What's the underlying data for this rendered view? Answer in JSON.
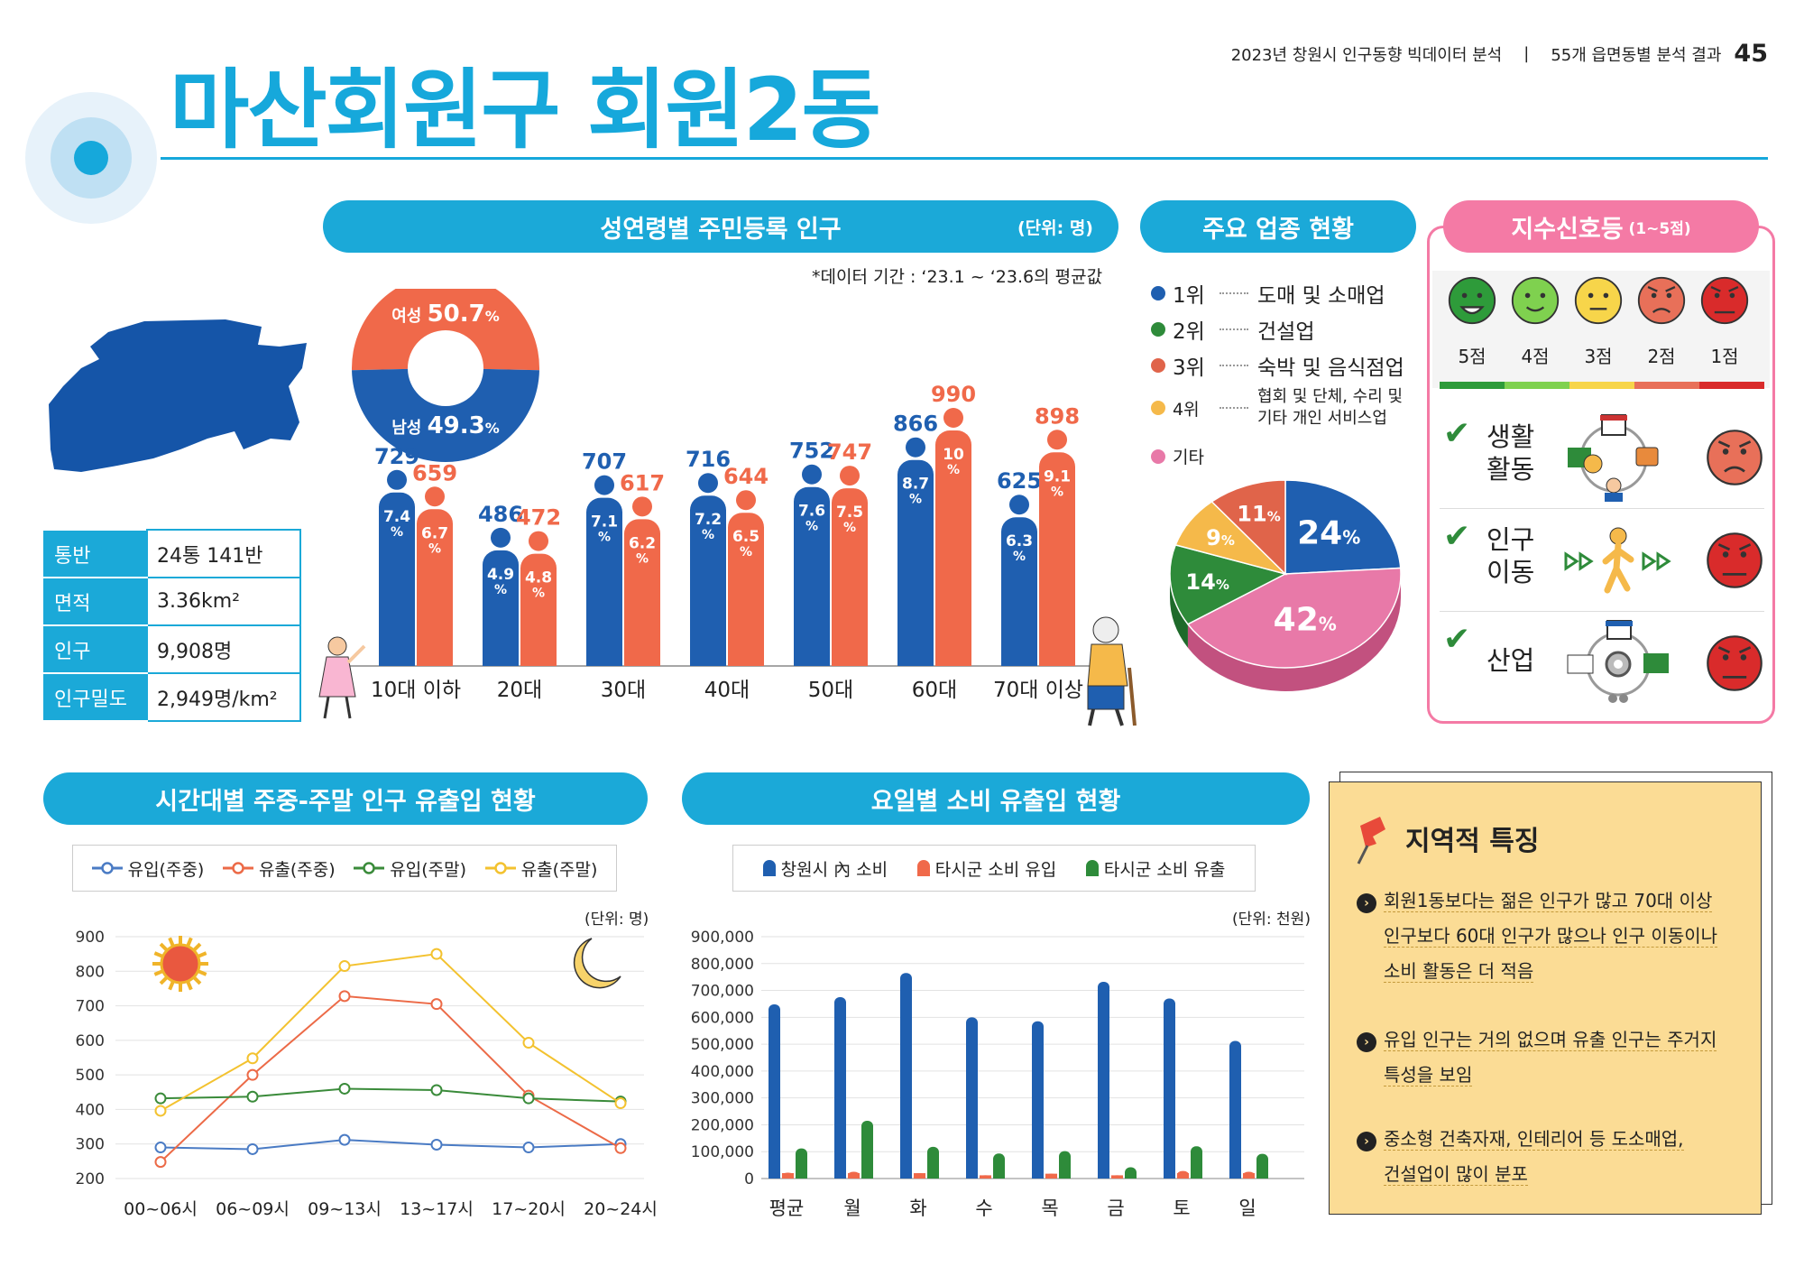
{
  "header": {
    "title": "마산회원구 회원2동",
    "report": "2023년 창원시 인구동향 빅데이터 분석",
    "separator": "|",
    "section": "55개 읍면동별 분석 결과",
    "page": "45"
  },
  "info": [
    {
      "key": "통반",
      "value": "24통 141반"
    },
    {
      "key": "면적",
      "value": "3.36km²"
    },
    {
      "key": "인구",
      "value": "9,908명"
    },
    {
      "key": "인구밀도",
      "value": "2,949명/km²"
    }
  ],
  "sections": {
    "age": {
      "title": "성연령별 주민등록 인구",
      "unit": "(단위: 명)",
      "period": "*데이터 기간 : ‘23.1 ~ ‘23.6의 평균값"
    },
    "industry": {
      "title": "주요 업종 현황"
    },
    "signal": {
      "title": "지수신호등",
      "range": "(1~5점)"
    },
    "time": {
      "title": "시간대별 주중-주말 인구 유출입 현황",
      "unit": "(단위: 명)"
    },
    "week": {
      "title": "요일별 소비 유출입 현황",
      "unit": "(단위: 천원)"
    },
    "note": {
      "title": "지역적 특징"
    }
  },
  "gender": {
    "female_label": "여성",
    "female_value": "50.7",
    "female_pct": 50.7,
    "male_label": "남성",
    "male_value": "49.3",
    "male_pct": 49.3,
    "unit": "%"
  },
  "industry_legend": [
    {
      "rank": "1위",
      "name": "도매 및 소매업",
      "color": "#1f5fb0"
    },
    {
      "rank": "2위",
      "name": "건설업",
      "color": "#2e8b3a"
    },
    {
      "rank": "3위",
      "name": "숙박 및 음식점업",
      "color": "#e0644a"
    },
    {
      "rank": "4위",
      "name": "협회 및 단체, 수리 및 기타 개인 서비스업",
      "color": "#f5b94a"
    },
    {
      "rank": "기타",
      "name": "",
      "color": "#e879a8"
    }
  ],
  "signal": {
    "scores": [
      "5점",
      "4점",
      "3점",
      "2점",
      "1점"
    ],
    "colors": [
      "#2e9b3a",
      "#7fd14f",
      "#f7d54a",
      "#e87059",
      "#d92b2b"
    ],
    "items": [
      {
        "label1": "생활",
        "label2": "활동",
        "score": 2
      },
      {
        "label1": "인구",
        "label2": "이동",
        "score": 1
      },
      {
        "label1": "산업",
        "label2": "",
        "score": 1
      }
    ]
  },
  "notes": [
    {
      "lines": [
        "회원1동보다는 젊은 인구가 많고 70대 이상",
        "인구보다 60대 인구가 많으나 인구 이동이나",
        "소비 활동은 더 적음"
      ]
    },
    {
      "lines": [
        "유입 인구는 거의 없으며 유출 인구는 주거지",
        "특성을 보임"
      ]
    },
    {
      "lines": [
        "중소형 건축자재, 인테리어 등 도소매업,",
        "건설업이 많이 분포"
      ]
    }
  ],
  "chart_data": [
    {
      "type": "bar",
      "title": "성연령별 주민등록 인구",
      "categories": [
        "10대 이하",
        "20대",
        "30대",
        "40대",
        "50대",
        "60대",
        "70대 이상"
      ],
      "series": [
        {
          "name": "남성",
          "color": "#1f5fb0",
          "values": [
            729,
            486,
            707,
            716,
            752,
            866,
            625
          ],
          "pct": [
            "7.4",
            "4.9",
            "7.1",
            "7.2",
            "7.6",
            "8.7",
            "6.3"
          ]
        },
        {
          "name": "여성",
          "color": "#f0694a",
          "values": [
            659,
            472,
            617,
            644,
            747,
            990,
            898
          ],
          "pct": [
            "6.7",
            "4.8",
            "6.2",
            "6.5",
            "7.5",
            "10",
            "9.1"
          ]
        }
      ],
      "pct_unit": "%"
    },
    {
      "type": "pie",
      "title": "주요 업종 현황",
      "slices": [
        {
          "name": "1위",
          "value": 24,
          "label": "24",
          "color": "#1f5fb0",
          "side": "#164a8a"
        },
        {
          "name": "기타",
          "value": 42,
          "label": "42",
          "color": "#e879a8",
          "side": "#c2517f"
        },
        {
          "name": "2위",
          "value": 14,
          "label": "14",
          "color": "#2e8b3a",
          "side": "#1e6a2a"
        },
        {
          "name": "4위",
          "value": 9,
          "label": "9",
          "color": "#f5b94a",
          "side": "#c78f2a"
        },
        {
          "name": "3위",
          "value": 11,
          "label": "11",
          "color": "#e0644a",
          "side": "#b14734"
        }
      ],
      "unit": "%"
    },
    {
      "type": "line",
      "title": "시간대별 주중-주말 인구 유출입 현황",
      "categories": [
        "00~06시",
        "06~09시",
        "09~13시",
        "13~17시",
        "17~20시",
        "20~24시"
      ],
      "ylim": [
        200,
        900
      ],
      "yticks": [
        "900",
        "800",
        "700",
        "600",
        "500",
        "400",
        "300",
        "200"
      ],
      "series": [
        {
          "name": "유입(주중)",
          "color": "#4a7bc4",
          "values": [
            290,
            285,
            312,
            298,
            290,
            300
          ]
        },
        {
          "name": "유출(주중)",
          "color": "#ec6a47",
          "values": [
            248,
            500,
            728,
            705,
            440,
            288
          ]
        },
        {
          "name": "유입(주말)",
          "color": "#3a8b3a",
          "values": [
            432,
            437,
            460,
            456,
            432,
            423
          ]
        },
        {
          "name": "유출(주말)",
          "color": "#f3c22f",
          "values": [
            396,
            548,
            815,
            850,
            593,
            418
          ]
        }
      ]
    },
    {
      "type": "bar",
      "title": "요일별 소비 유출입 현황",
      "categories": [
        "평균",
        "월",
        "화",
        "수",
        "목",
        "금",
        "토",
        "일"
      ],
      "ylim": [
        0,
        900000
      ],
      "yticks": [
        "900,000",
        "800,000",
        "700,000",
        "600,000",
        "500,000",
        "400,000",
        "300,000",
        "200,000",
        "100,000",
        "0"
      ],
      "series": [
        {
          "name": "창원시 內 소비",
          "color": "#1f5fb0",
          "values": [
            648000,
            675000,
            765000,
            600000,
            585000,
            732000,
            670000,
            512000
          ]
        },
        {
          "name": "타시군 소비 유입",
          "color": "#f0694a",
          "values": [
            22000,
            25000,
            20000,
            12000,
            18000,
            12000,
            28000,
            25000
          ]
        },
        {
          "name": "타시군 소비 유출",
          "color": "#2e8b3a",
          "values": [
            112000,
            215000,
            118000,
            93000,
            102000,
            42000,
            120000,
            92000
          ]
        }
      ]
    }
  ]
}
